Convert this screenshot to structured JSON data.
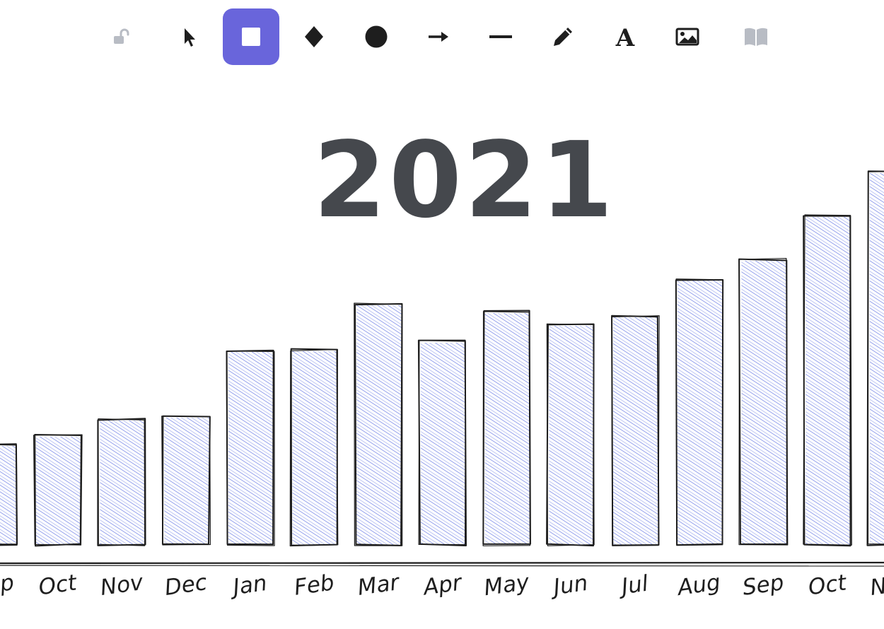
{
  "toolbar": {
    "tools": [
      {
        "id": "lock",
        "icon": "lock-open-icon",
        "active": false,
        "disabled": true
      },
      {
        "id": "selection",
        "icon": "pointer-icon",
        "active": false
      },
      {
        "id": "rectangle",
        "icon": "square-icon",
        "active": true
      },
      {
        "id": "diamond",
        "icon": "diamond-icon",
        "active": false
      },
      {
        "id": "ellipse",
        "icon": "circle-icon",
        "active": false
      },
      {
        "id": "arrow",
        "icon": "arrow-right-icon",
        "active": false
      },
      {
        "id": "line",
        "icon": "line-icon",
        "active": false
      },
      {
        "id": "draw",
        "icon": "pencil-icon",
        "active": false
      },
      {
        "id": "text",
        "icon": "text-icon",
        "active": false
      },
      {
        "id": "image",
        "icon": "image-icon",
        "active": false
      },
      {
        "id": "library",
        "icon": "book-icon",
        "active": false,
        "disabled": true
      }
    ],
    "colors": {
      "active_bg": "#6965db",
      "icon": "#1e1e1e",
      "disabled": "#b8bcc4"
    }
  },
  "chart_data": {
    "type": "bar",
    "title": "2021",
    "categories": [
      "Sep",
      "Oct",
      "Nov",
      "Dec",
      "Jan",
      "Feb",
      "Mar",
      "Apr",
      "May",
      "Jun",
      "Jul",
      "Aug",
      "Sep",
      "Oct",
      "Nov"
    ],
    "values": [
      142,
      155,
      178,
      182,
      275,
      276,
      341,
      288,
      330,
      312,
      324,
      376,
      404,
      466,
      528
    ],
    "fill_color": "#7b8be8",
    "stroke_color": "#1e1e1e",
    "title_color": "#45484d",
    "grid": false,
    "style": "hand-drawn hachure"
  }
}
